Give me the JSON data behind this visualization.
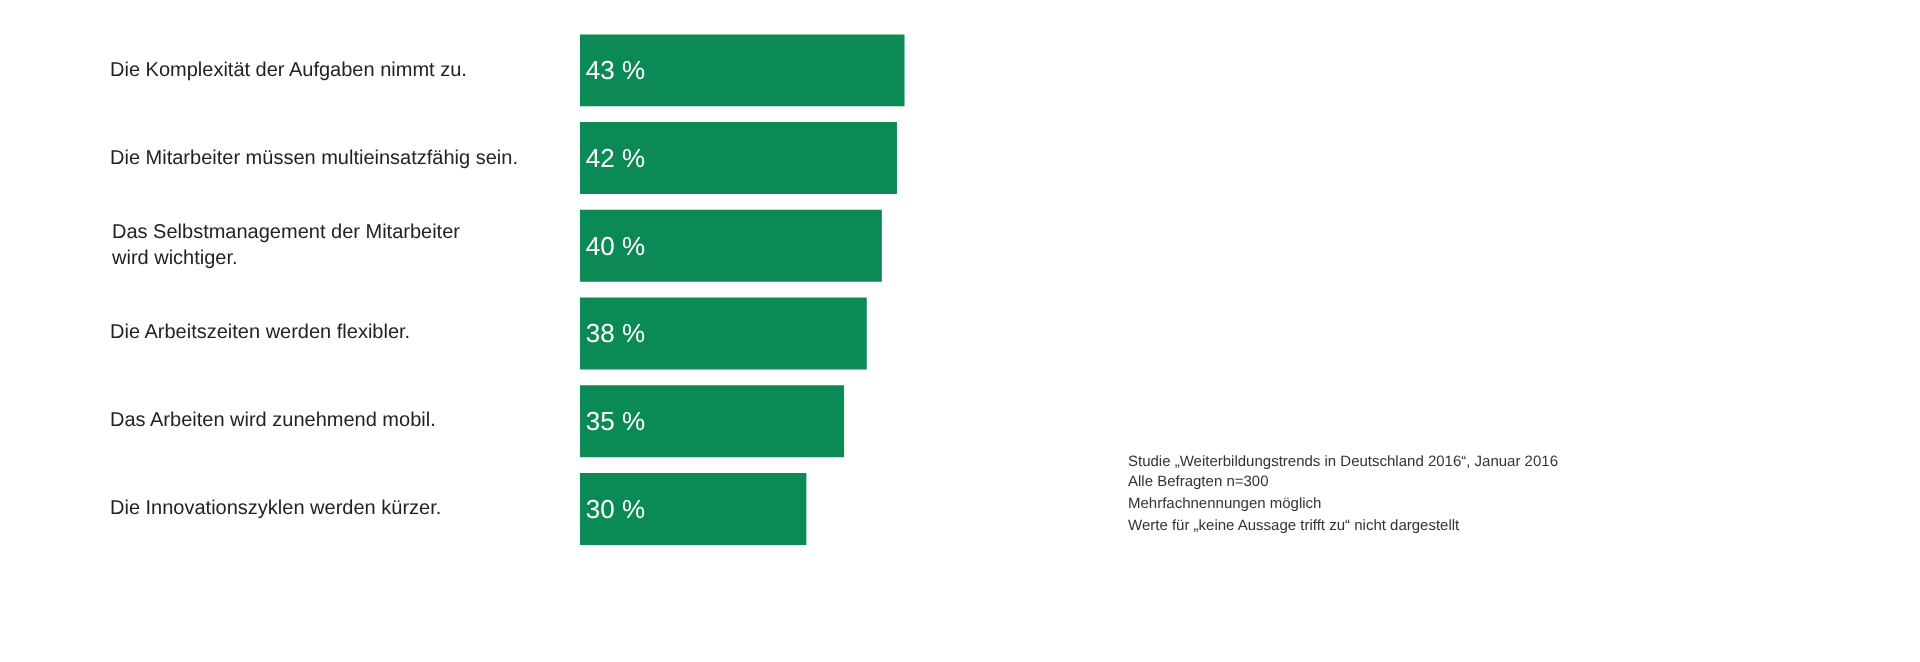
{
  "chart_data": {
    "type": "bar",
    "orientation": "horizontal",
    "categories": [
      "Die Komplexität der Aufgaben nimmt zu.",
      "Die Mitarbeiter müssen multieinsatzfähig sein.",
      "Das Selbstmanagement der Mitarbeiter\nwird wichtiger.",
      "Die Arbeitszeiten werden flexibler.",
      "Das Arbeiten wird zunehmend mobil.",
      "Die Innovationszyklen werden kürzer."
    ],
    "values": [
      43,
      42,
      40,
      38,
      35,
      30
    ],
    "value_labels": [
      "43 %",
      "42 %",
      "40 %",
      "38 %",
      "35 %",
      "30 %"
    ],
    "color": "#0b8a55",
    "annotations": [
      "Studie „Weiterbildungstrends in Deutschland 2016“, Januar 2016",
      "Alle Befragten n=300",
      "Mehrfachnennungen möglich",
      "Werte für „keine Aussage trifft zu“ nicht dargestellt"
    ],
    "legend": false
  }
}
